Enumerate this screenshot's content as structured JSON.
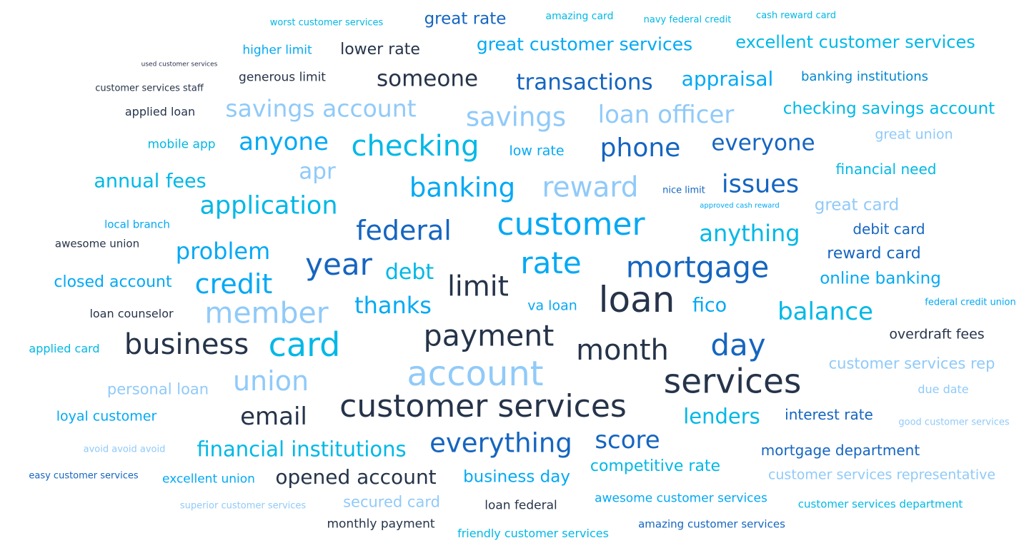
{
  "colors": {
    "dark": "#26344a",
    "navy": "#1565c0",
    "blue": "#0288d1",
    "sky": "#03a9f4",
    "cyan": "#00b8e6",
    "light": "#90caf9"
  },
  "words": [
    {
      "text": "worst customer services",
      "size": 13,
      "color": "cyan"
    },
    {
      "text": "great rate",
      "size": 23,
      "color": "navy"
    },
    {
      "text": "amazing card",
      "size": 14,
      "color": "cyan"
    },
    {
      "text": "navy federal credit",
      "size": 13,
      "color": "cyan"
    },
    {
      "text": "cash reward card",
      "size": 13,
      "color": "cyan"
    },
    {
      "text": "higher limit",
      "size": 17,
      "color": "sky"
    },
    {
      "text": "lower rate",
      "size": 22,
      "color": "dark"
    },
    {
      "text": "great customer services",
      "size": 25,
      "color": "sky"
    },
    {
      "text": "excellent customer services",
      "size": 24,
      "color": "cyan"
    },
    {
      "text": "used customer services",
      "size": 9,
      "color": "dark"
    },
    {
      "text": "generous limit",
      "size": 17,
      "color": "dark"
    },
    {
      "text": "someone",
      "size": 31,
      "color": "dark"
    },
    {
      "text": "transactions",
      "size": 31,
      "color": "navy"
    },
    {
      "text": "appraisal",
      "size": 28,
      "color": "sky"
    },
    {
      "text": "banking institutions",
      "size": 18,
      "color": "blue"
    },
    {
      "text": "customer services staff",
      "size": 13,
      "color": "dark"
    },
    {
      "text": "applied loan",
      "size": 16,
      "color": "dark"
    },
    {
      "text": "savings account",
      "size": 33,
      "color": "light"
    },
    {
      "text": "savings",
      "size": 37,
      "color": "light"
    },
    {
      "text": "loan officer",
      "size": 34,
      "color": "light"
    },
    {
      "text": "checking savings account",
      "size": 23,
      "color": "cyan"
    },
    {
      "text": "great union",
      "size": 19,
      "color": "light"
    },
    {
      "text": "mobile app",
      "size": 17,
      "color": "cyan"
    },
    {
      "text": "anyone",
      "size": 34,
      "color": "sky"
    },
    {
      "text": "checking",
      "size": 40,
      "color": "cyan"
    },
    {
      "text": "low rate",
      "size": 19,
      "color": "sky"
    },
    {
      "text": "phone",
      "size": 36,
      "color": "navy"
    },
    {
      "text": "everyone",
      "size": 31,
      "color": "navy"
    },
    {
      "text": "annual fees",
      "size": 27,
      "color": "cyan"
    },
    {
      "text": "apr",
      "size": 31,
      "color": "light"
    },
    {
      "text": "banking",
      "size": 37,
      "color": "sky"
    },
    {
      "text": "reward",
      "size": 39,
      "color": "light"
    },
    {
      "text": "nice limit",
      "size": 13,
      "color": "navy"
    },
    {
      "text": "issues",
      "size": 35,
      "color": "navy"
    },
    {
      "text": "financial need",
      "size": 20,
      "color": "cyan"
    },
    {
      "text": "approved cash reward",
      "size": 10,
      "color": "sky"
    },
    {
      "text": "application",
      "size": 35,
      "color": "cyan"
    },
    {
      "text": "great card",
      "size": 23,
      "color": "light"
    },
    {
      "text": "local branch",
      "size": 15,
      "color": "sky"
    },
    {
      "text": "federal",
      "size": 38,
      "color": "navy"
    },
    {
      "text": "customer",
      "size": 44,
      "color": "sky"
    },
    {
      "text": "anything",
      "size": 32,
      "color": "cyan"
    },
    {
      "text": "debit card",
      "size": 20,
      "color": "navy"
    },
    {
      "text": "awesome union",
      "size": 15,
      "color": "dark"
    },
    {
      "text": "problem",
      "size": 32,
      "color": "sky"
    },
    {
      "text": "reward card",
      "size": 22,
      "color": "navy"
    },
    {
      "text": "year",
      "size": 42,
      "color": "navy"
    },
    {
      "text": "rate",
      "size": 42,
      "color": "sky"
    },
    {
      "text": "mortgage",
      "size": 41,
      "color": "navy"
    },
    {
      "text": "debt",
      "size": 30,
      "color": "cyan"
    },
    {
      "text": "closed account",
      "size": 22,
      "color": "sky"
    },
    {
      "text": "credit",
      "size": 38,
      "color": "sky"
    },
    {
      "text": "limit",
      "size": 39,
      "color": "dark"
    },
    {
      "text": "online banking",
      "size": 23,
      "color": "sky"
    },
    {
      "text": "loan",
      "size": 50,
      "color": "dark"
    },
    {
      "text": "member",
      "size": 41,
      "color": "light"
    },
    {
      "text": "thanks",
      "size": 32,
      "color": "sky"
    },
    {
      "text": "va loan",
      "size": 19,
      "color": "sky"
    },
    {
      "text": "fico",
      "size": 27,
      "color": "sky"
    },
    {
      "text": "federal credit union",
      "size": 13,
      "color": "sky"
    },
    {
      "text": "loan counselor",
      "size": 16,
      "color": "dark"
    },
    {
      "text": "balance",
      "size": 34,
      "color": "cyan"
    },
    {
      "text": "payment",
      "size": 41,
      "color": "dark"
    },
    {
      "text": "applied card",
      "size": 16,
      "color": "cyan"
    },
    {
      "text": "business",
      "size": 40,
      "color": "dark"
    },
    {
      "text": "card",
      "size": 46,
      "color": "cyan"
    },
    {
      "text": "month",
      "size": 40,
      "color": "dark"
    },
    {
      "text": "day",
      "size": 42,
      "color": "navy"
    },
    {
      "text": "overdraft fees",
      "size": 19,
      "color": "dark"
    },
    {
      "text": "account",
      "size": 48,
      "color": "light"
    },
    {
      "text": "services",
      "size": 47,
      "color": "dark"
    },
    {
      "text": "customer services rep",
      "size": 21,
      "color": "light"
    },
    {
      "text": "union",
      "size": 38,
      "color": "light"
    },
    {
      "text": "personal loan",
      "size": 21,
      "color": "light"
    },
    {
      "text": "due date",
      "size": 16,
      "color": "light"
    },
    {
      "text": "customer services",
      "size": 44,
      "color": "dark"
    },
    {
      "text": "email",
      "size": 34,
      "color": "dark"
    },
    {
      "text": "lenders",
      "size": 29,
      "color": "cyan"
    },
    {
      "text": "interest rate",
      "size": 20,
      "color": "navy"
    },
    {
      "text": "loyal customer",
      "size": 19,
      "color": "sky"
    },
    {
      "text": "good customer services",
      "size": 13,
      "color": "light"
    },
    {
      "text": "everything",
      "size": 37,
      "color": "navy"
    },
    {
      "text": "score",
      "size": 34,
      "color": "navy"
    },
    {
      "text": "avoid avoid avoid",
      "size": 13,
      "color": "light"
    },
    {
      "text": "financial institutions",
      "size": 29,
      "color": "cyan"
    },
    {
      "text": "mortgage department",
      "size": 20,
      "color": "navy"
    },
    {
      "text": "competitive rate",
      "size": 22,
      "color": "cyan"
    },
    {
      "text": "easy customer services",
      "size": 13,
      "color": "navy"
    },
    {
      "text": "excellent union",
      "size": 17,
      "color": "sky"
    },
    {
      "text": "opened account",
      "size": 28,
      "color": "dark"
    },
    {
      "text": "business day",
      "size": 23,
      "color": "sky"
    },
    {
      "text": "customer services representative",
      "size": 19,
      "color": "light"
    },
    {
      "text": "superior customer services",
      "size": 13,
      "color": "light"
    },
    {
      "text": "secured card",
      "size": 21,
      "color": "light"
    },
    {
      "text": "loan federal",
      "size": 17,
      "color": "dark"
    },
    {
      "text": "awesome customer services",
      "size": 17,
      "color": "sky"
    },
    {
      "text": "customer services department",
      "size": 15,
      "color": "cyan"
    },
    {
      "text": "monthly payment",
      "size": 17,
      "color": "dark"
    },
    {
      "text": "friendly customer services",
      "size": 16,
      "color": "cyan"
    },
    {
      "text": "amazing customer services",
      "size": 15,
      "color": "navy"
    }
  ]
}
